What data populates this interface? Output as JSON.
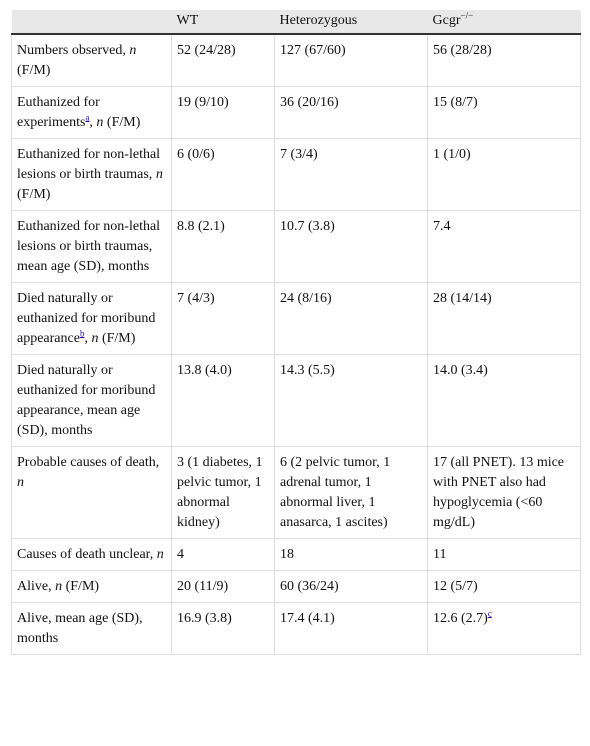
{
  "table": {
    "header": [
      "WT",
      "Heterozygous",
      [
        "Gcgr",
        {
          "sup": "−/−"
        }
      ]
    ],
    "rows": [
      [
        [
          "Numbers observed, ",
          {
            "i": "n"
          },
          " (F/M)"
        ],
        "52 (24/28)",
        "127 (67/60)",
        "56 (28/28)"
      ],
      [
        [
          "Euthanized for experiments",
          {
            "link": "a"
          },
          ", ",
          {
            "i": "n"
          },
          " (F/M)"
        ],
        "19 (9/10)",
        "36 (20/16)",
        "15 (8/7)"
      ],
      [
        [
          "Euthanized for non-lethal lesions or birth traumas, ",
          {
            "i": "n"
          },
          " (F/M)"
        ],
        "6 (0/6)",
        "7 (3/4)",
        "1 (1/0)"
      ],
      [
        "Euthanized for non-lethal lesions or birth traumas, mean age (SD), months",
        "8.8 (2.1)",
        "10.7 (3.8)",
        "7.4"
      ],
      [
        [
          "Died naturally or euthanized for moribund appearance",
          {
            "link": "b"
          },
          ", ",
          {
            "i": "n"
          },
          " (F/M)"
        ],
        "7 (4/3)",
        "24 (8/16)",
        "28 (14/14)"
      ],
      [
        "Died naturally or euthanized for moribund appearance, mean age (SD), months",
        "13.8 (4.0)",
        "14.3 (5.5)",
        "14.0 (3.4)"
      ],
      [
        [
          "Probable causes of death, ",
          {
            "i": "n"
          }
        ],
        "3 (1 diabetes, 1 pelvic tumor, 1 abnormal kidney)",
        "6 (2 pelvic tumor, 1 adrenal tumor, 1 abnormal liver, 1 anasarca, 1 ascites)",
        "17 (all PNET). 13 mice with PNET also had hypoglycemia (<60 mg/dL)"
      ],
      [
        [
          "Causes of death unclear, ",
          {
            "i": "n"
          }
        ],
        "4",
        "18",
        "11"
      ],
      [
        [
          "Alive, ",
          {
            "i": "n"
          },
          " (F/M)"
        ],
        "20 (11/9)",
        "60 (36/24)",
        "12 (5/7)"
      ],
      [
        "Alive, mean age (SD), months",
        "16.9 (3.8)",
        "17.4 (4.1)",
        [
          "12.6 (2.7)",
          {
            "link": "c"
          }
        ]
      ]
    ]
  }
}
